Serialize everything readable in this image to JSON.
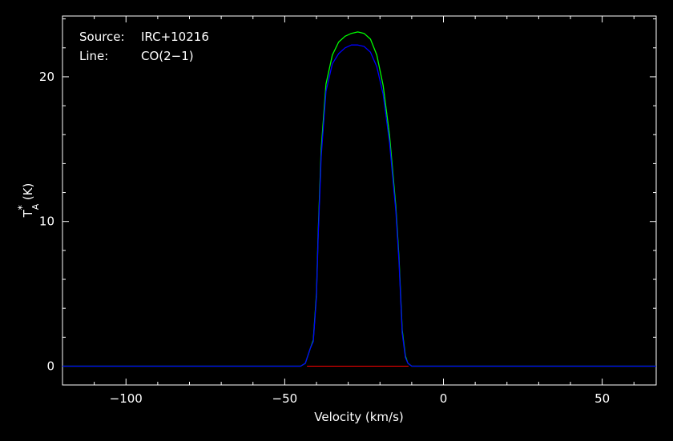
{
  "chart_data": {
    "type": "line",
    "title": "",
    "annotations": [
      {
        "label": "Source:",
        "value": "IRC+10216"
      },
      {
        "label": "Line:",
        "value": "CO(2−1)"
      }
    ],
    "xlabel": "Velocity (km/s)",
    "ylabel": {
      "base": "T",
      "superscript": "*",
      "subscript": "A",
      "unit": "(K)"
    },
    "xlim": [
      -120,
      67
    ],
    "ylim": [
      -1.3,
      24.2
    ],
    "xticks": [
      {
        "value": -100,
        "label": "−100"
      },
      {
        "value": -50,
        "label": "−50"
      },
      {
        "value": 0,
        "label": "0"
      },
      {
        "value": 50,
        "label": "50"
      }
    ],
    "yticks": [
      {
        "value": 0,
        "label": "0"
      },
      {
        "value": 10,
        "label": "10"
      },
      {
        "value": 20,
        "label": "20"
      }
    ],
    "grid": false,
    "baseline": {
      "x": [
        -43,
        -11
      ],
      "y": 0,
      "color": "#ff0000"
    },
    "series": [
      {
        "color": "#00ff00",
        "x": [
          -120,
          -45,
          -43.5,
          -42,
          -41,
          -40,
          -39.5,
          -38.5,
          -37,
          -35,
          -33,
          -31,
          -29,
          -27,
          -25,
          -23,
          -21,
          -19,
          -17,
          -15,
          -14,
          -13.5,
          -13,
          -12,
          -11.2,
          -10,
          67
        ],
        "y": [
          0,
          0,
          0.2,
          1.2,
          1.8,
          5.0,
          9.0,
          15.0,
          19.5,
          21.5,
          22.4,
          22.8,
          23.0,
          23.1,
          23.0,
          22.6,
          21.5,
          19.4,
          16.0,
          11.0,
          7.5,
          5.0,
          2.5,
          0.7,
          0.2,
          0,
          0
        ]
      },
      {
        "color": "#0000ff",
        "x": [
          -120,
          -45,
          -43.5,
          -42,
          -41,
          -40,
          -39.5,
          -38.5,
          -37,
          -35,
          -33,
          -31,
          -29,
          -27,
          -25,
          -23,
          -21,
          -19,
          -17,
          -15,
          -14,
          -13.5,
          -13,
          -12,
          -11.2,
          -10,
          67
        ],
        "y": [
          0,
          0,
          0.2,
          1.2,
          1.7,
          4.8,
          8.7,
          14.5,
          19.0,
          20.9,
          21.6,
          22.0,
          22.2,
          22.2,
          22.1,
          21.7,
          20.7,
          18.8,
          15.5,
          10.7,
          7.2,
          4.8,
          2.3,
          0.6,
          0.2,
          0,
          0
        ]
      }
    ]
  }
}
